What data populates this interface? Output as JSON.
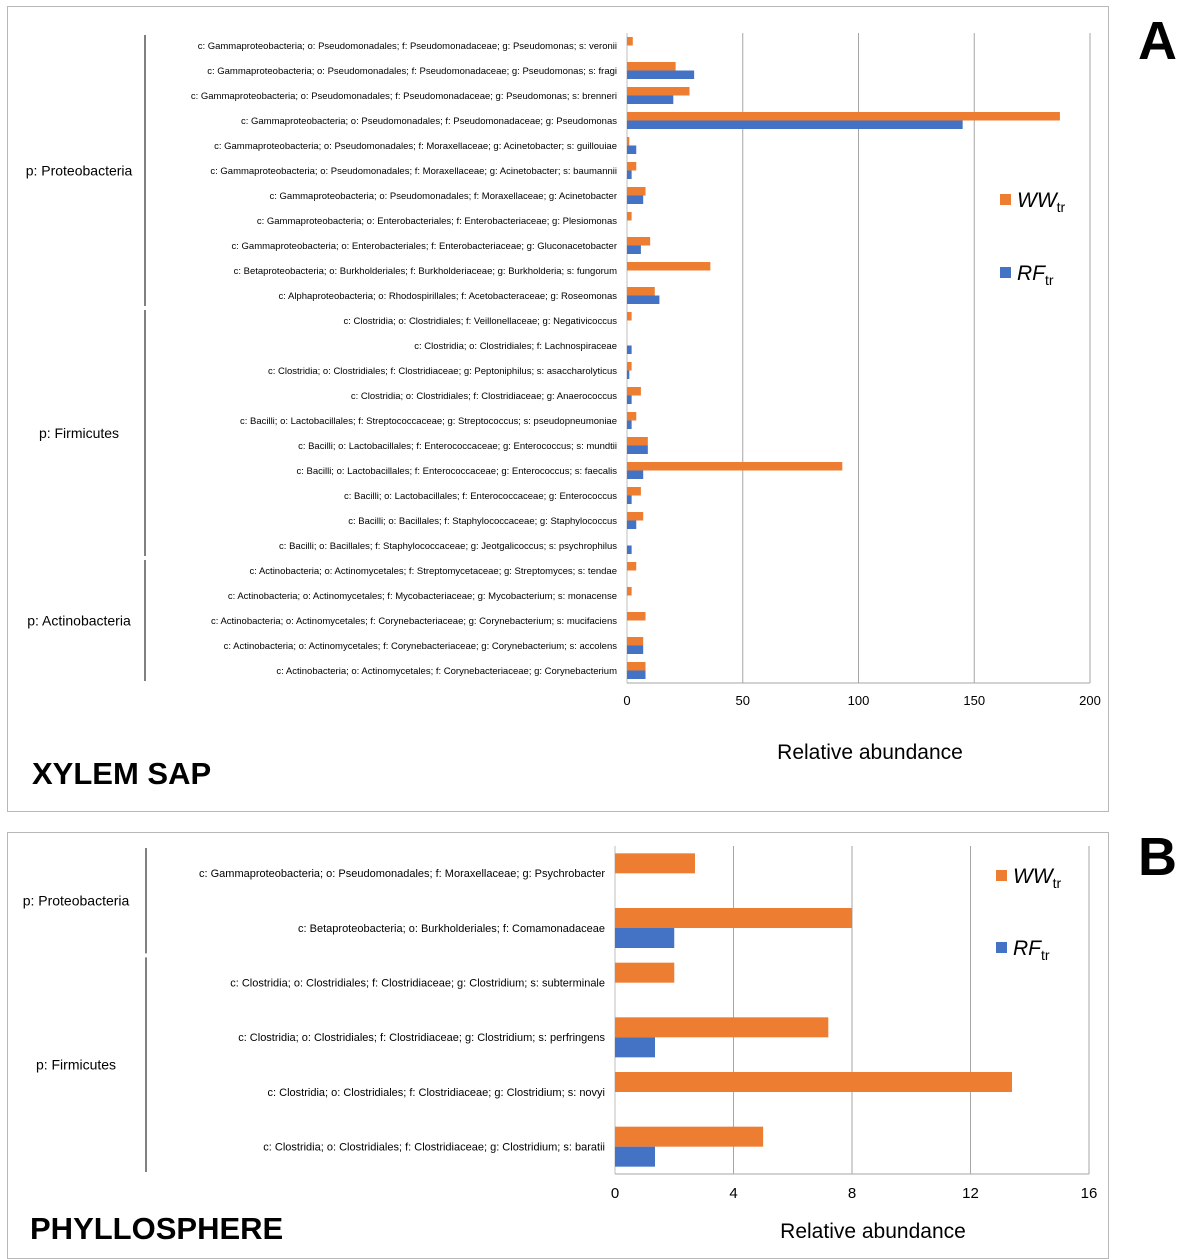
{
  "chart_data": [
    {
      "type": "bar",
      "orientation": "horizontal",
      "panel_label": "A",
      "panel_title": "XYLEM SAP",
      "xlabel": "Relative abundance",
      "xlim": [
        0,
        200
      ],
      "xticks": [
        0,
        50,
        100,
        150,
        200
      ],
      "grid": "vertical",
      "legend_position": "right",
      "series": [
        {
          "name": "WW",
          "name_sub": "tr",
          "color": "#ed7d31",
          "values": [
            2.5,
            21,
            27,
            187,
            1,
            4,
            8,
            2,
            10,
            36,
            12,
            2,
            0,
            2,
            6,
            4,
            9,
            93,
            6,
            7,
            0,
            4,
            2,
            8,
            7,
            8
          ]
        },
        {
          "name": "RF",
          "name_sub": "tr",
          "color": "#4472c4",
          "values": [
            0,
            29,
            20,
            145,
            4,
            2,
            7,
            0,
            6,
            0,
            14,
            0,
            2,
            1,
            2,
            2,
            9,
            7,
            2,
            4,
            2,
            0,
            0,
            0,
            7,
            8
          ]
        }
      ],
      "categories": [
        "c: Gammaproteobacteria; o: Pseudomonadales; f: Pseudomonadaceae; g: Pseudomonas; s: veronii",
        "c: Gammaproteobacteria; o: Pseudomonadales; f: Pseudomonadaceae; g: Pseudomonas; s: fragi",
        "c: Gammaproteobacteria; o: Pseudomonadales; f: Pseudomonadaceae; g: Pseudomonas; s: brenneri",
        "c: Gammaproteobacteria; o: Pseudomonadales; f: Pseudomonadaceae; g: Pseudomonas",
        "c: Gammaproteobacteria; o: Pseudomonadales; f: Moraxellaceae; g: Acinetobacter; s: guillouiae",
        "c: Gammaproteobacteria; o: Pseudomonadales; f: Moraxellaceae; g: Acinetobacter; s: baumannii",
        "c: Gammaproteobacteria; o: Pseudomonadales; f: Moraxellaceae; g: Acinetobacter",
        "c: Gammaproteobacteria; o: Enterobacteriales; f: Enterobacteriaceae; g: Plesiomonas",
        "c: Gammaproteobacteria; o: Enterobacteriales; f: Enterobacteriaceae; g: Gluconacetobacter",
        "c: Betaproteobacteria; o: Burkholderiales; f: Burkholderiaceae; g: Burkholderia; s: fungorum",
        "c: Alphaproteobacteria; o: Rhodospirillales; f: Acetobacteraceae; g: Roseomonas",
        "c: Clostridia; o: Clostridiales; f: Veillonellaceae; g: Negativicoccus",
        "c: Clostridia; o: Clostridiales; f: Lachnospiraceae",
        "c: Clostridia; o: Clostridiales; f: Clostridiaceae; g: Peptoniphilus; s: asaccharolyticus",
        "c: Clostridia; o: Clostridiales; f: Clostridiaceae; g: Anaerococcus",
        "c: Bacilli; o: Lactobacillales; f: Streptococcaceae; g: Streptococcus; s: pseudopneumoniae",
        "c: Bacilli; o: Lactobacillales; f: Enterococcaceae; g: Enterococcus; s: mundtii",
        "c: Bacilli; o: Lactobacillales; f: Enterococcaceae; g: Enterococcus; s: faecalis",
        "c: Bacilli; o: Lactobacillales; f: Enterococcaceae; g: Enterococcus",
        "c: Bacilli; o: Bacillales; f: Staphylococcaceae; g: Staphylococcus",
        "c: Bacilli; o: Bacillales; f: Staphylococcaceae; g: Jeotgalicoccus; s: psychrophilus",
        "c: Actinobacteria; o: Actinomycetales; f: Streptomycetaceae; g: Streptomyces; s: tendae",
        "c: Actinobacteria; o: Actinomycetales; f: Mycobacteriaceae; g: Mycobacterium; s: monacense",
        "c: Actinobacteria; o: Actinomycetales; f: Corynebacteriaceae; g: Corynebacterium; s: mucifaciens",
        "c: Actinobacteria; o: Actinomycetales; f: Corynebacteriaceae; g: Corynebacterium; s: accolens",
        "c: Actinobacteria; o: Actinomycetales; f: Corynebacteriaceae; g: Corynebacterium"
      ],
      "groups": [
        {
          "label": "p: Proteobacteria",
          "first": 0,
          "last": 10
        },
        {
          "label": "p: Firmicutes",
          "first": 11,
          "last": 20
        },
        {
          "label": "p: Actinobacteria",
          "first": 21,
          "last": 25
        }
      ]
    },
    {
      "type": "bar",
      "orientation": "horizontal",
      "panel_label": "B",
      "panel_title": "PHYLLOSPHERE",
      "xlabel": "Relative abundance",
      "xlim": [
        0,
        16
      ],
      "xticks": [
        0,
        4,
        8,
        12,
        16
      ],
      "grid": "vertical",
      "legend_position": "right",
      "series": [
        {
          "name": "WW",
          "name_sub": "tr",
          "color": "#ed7d31",
          "values": [
            2.7,
            8,
            2,
            7.2,
            13.4,
            5
          ]
        },
        {
          "name": "RF",
          "name_sub": "tr",
          "color": "#4472c4",
          "values": [
            0,
            2,
            0,
            1.35,
            0,
            1.35
          ]
        }
      ],
      "categories": [
        "c: Gammaproteobacteria; o: Pseudomonadales; f: Moraxellaceae; g: Psychrobacter",
        "c: Betaproteobacteria; o: Burkholderiales; f: Comamonadaceae",
        "c: Clostridia; o: Clostridiales; f: Clostridiaceae; g: Clostridium; s: subterminale",
        "c: Clostridia; o: Clostridiales; f: Clostridiaceae; g: Clostridium; s: perfringens",
        "c: Clostridia; o: Clostridiales; f: Clostridiaceae; g: Clostridium; s: novyi",
        "c: Clostridia; o: Clostridiales; f: Clostridiaceae; g: Clostridium; s: baratii"
      ],
      "groups": [
        {
          "label": "p: Proteobacteria",
          "first": 0,
          "last": 1
        },
        {
          "label": "p: Firmicutes",
          "first": 2,
          "last": 5
        }
      ]
    }
  ]
}
